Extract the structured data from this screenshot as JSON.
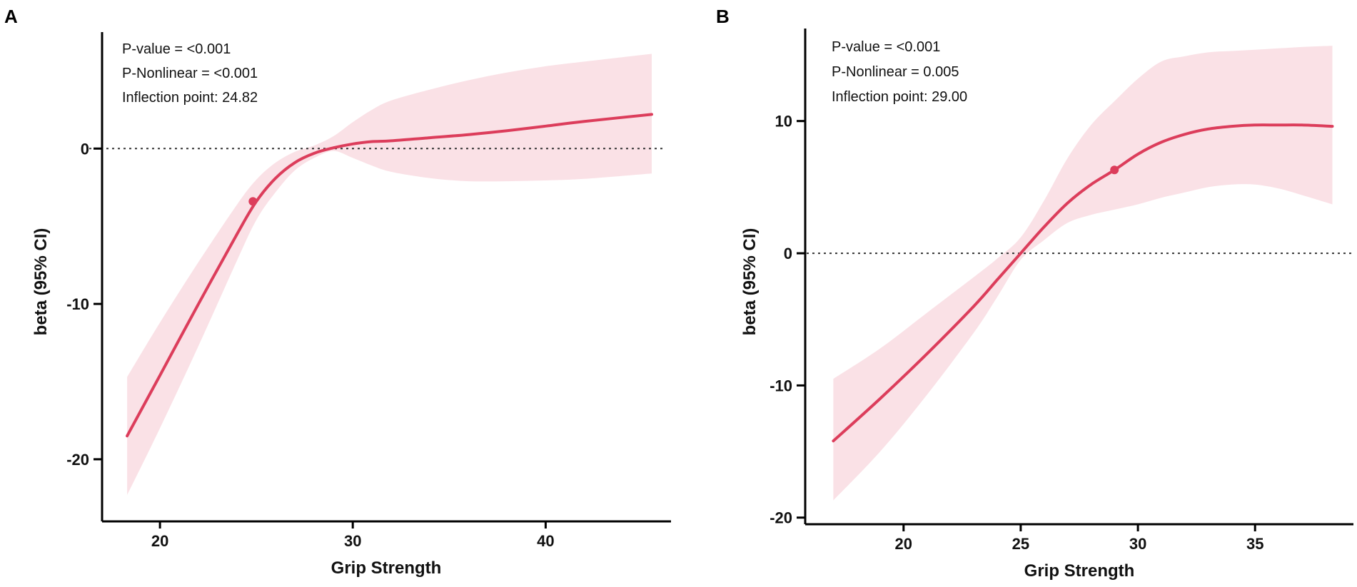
{
  "chart_data": [
    {
      "type": "line",
      "panel_label": "A",
      "xlabel": "Grip Strength",
      "ylabel": "beta (95% CI)",
      "xlim": [
        17,
        46.5
      ],
      "ylim": [
        -24,
        7.5
      ],
      "x_ticks": [
        20,
        30,
        40
      ],
      "y_ticks": [
        0,
        -10,
        -20
      ],
      "reference_line_y": 0,
      "annotations": [
        "P-value = <0.001",
        "P-Nonlinear = <0.001",
        "Inflection point: 24.82"
      ],
      "inflection_point": {
        "x": 24.82,
        "y": -3.4
      },
      "series": [
        {
          "name": "beta",
          "x": [
            18.3,
            20,
            22,
            24,
            25,
            26,
            27,
            28,
            29,
            30,
            31,
            32,
            34,
            36,
            38,
            40,
            42,
            45.5
          ],
          "y": [
            -18.5,
            -14.6,
            -10,
            -5.5,
            -3.4,
            -1.9,
            -0.9,
            -0.3,
            0.05,
            0.3,
            0.45,
            0.5,
            0.7,
            0.9,
            1.15,
            1.45,
            1.75,
            2.2
          ],
          "lower": [
            -22.3,
            -18,
            -12.7,
            -7.2,
            -4.6,
            -2.8,
            -1.4,
            -0.6,
            -0.15,
            -0.6,
            -1.1,
            -1.5,
            -1.9,
            -2.1,
            -2.1,
            -2.05,
            -1.95,
            -1.6
          ],
          "upper": [
            -14.7,
            -11.2,
            -7.3,
            -3.6,
            -2.0,
            -0.9,
            -0.2,
            0.2,
            0.8,
            1.7,
            2.5,
            3.1,
            3.8,
            4.4,
            4.9,
            5.3,
            5.6,
            6.1
          ]
        }
      ]
    },
    {
      "type": "line",
      "panel_label": "B",
      "xlabel": "Grip Strength",
      "ylabel": "beta (95% CI)",
      "xlim": [
        15.8,
        39.2
      ],
      "ylim": [
        -20.5,
        17
      ],
      "x_ticks": [
        20,
        25,
        30,
        35
      ],
      "y_ticks": [
        10,
        0,
        -10,
        -20
      ],
      "reference_line_y": 0,
      "annotations": [
        "P-value = <0.001",
        "P-Nonlinear = 0.005",
        "Inflection point: 29.00"
      ],
      "inflection_point": {
        "x": 29.0,
        "y": 6.3
      },
      "series": [
        {
          "name": "beta",
          "x": [
            17,
            19,
            21,
            23,
            24,
            25,
            26,
            27,
            28,
            29,
            30,
            31,
            32,
            33,
            34,
            35,
            36,
            37,
            38.3
          ],
          "y": [
            -14.2,
            -11,
            -7.6,
            -4.0,
            -2.0,
            0.0,
            2.0,
            3.8,
            5.2,
            6.3,
            7.5,
            8.4,
            9.0,
            9.4,
            9.6,
            9.7,
            9.7,
            9.7,
            9.6
          ],
          "lower": [
            -18.7,
            -15,
            -10.7,
            -6.0,
            -3.3,
            -0.5,
            1.0,
            2.3,
            2.9,
            3.3,
            3.7,
            4.2,
            4.6,
            5.0,
            5.2,
            5.2,
            4.9,
            4.4,
            3.7
          ],
          "upper": [
            -9.5,
            -7.2,
            -4.5,
            -1.8,
            -0.4,
            1.2,
            4.0,
            7.2,
            9.7,
            11.5,
            13.2,
            14.5,
            14.9,
            15.2,
            15.3,
            15.4,
            15.5,
            15.6,
            15.7
          ]
        }
      ]
    }
  ]
}
